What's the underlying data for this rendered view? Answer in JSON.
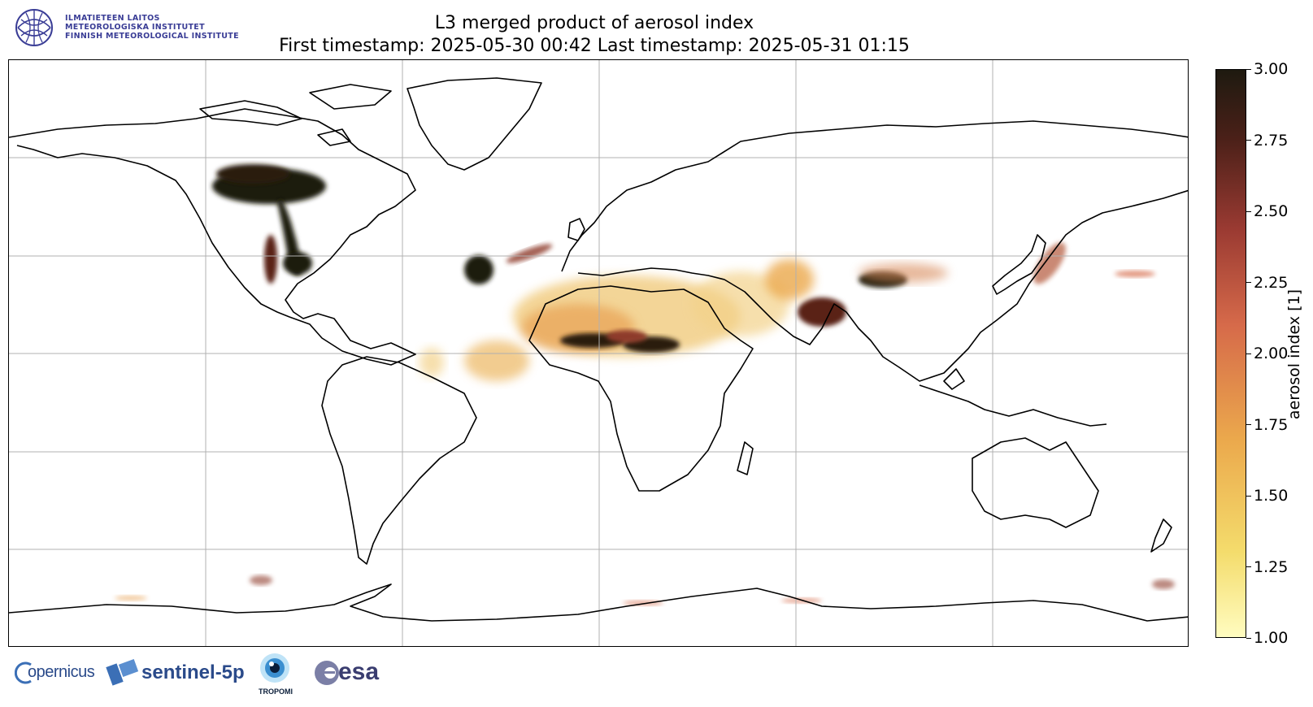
{
  "title": {
    "line1": "L3 merged product of aerosol index",
    "line2": "First timestamp: 2025-05-30 00:42   Last timestamp: 2025-05-31 01:15"
  },
  "institute": {
    "line1": "ILMATIETEEN LAITOS",
    "line2": "METEOROLOGISKA INSTITUTET",
    "line3": "FINNISH METEOROLOGICAL INSTITUTE"
  },
  "colorbar": {
    "label": "aerosol index [1]",
    "min": 1.0,
    "max": 3.0,
    "ticks": [
      "1.00",
      "1.25",
      "1.50",
      "1.75",
      "2.00",
      "2.25",
      "2.50",
      "2.75",
      "3.00"
    ],
    "colors": [
      "#fffcc0",
      "#f4dc6c",
      "#eba84c",
      "#d66a4a",
      "#9a3a32",
      "#4a2018",
      "#1e1a10"
    ]
  },
  "logos": {
    "copernicus": "opernicus",
    "sentinel": "sentinel-5p",
    "tropomi": "TROPOMI",
    "esa": "esa"
  },
  "map": {
    "projection": "equirectangular",
    "lon_range": [
      -180,
      180
    ],
    "lat_range": [
      -90,
      90
    ],
    "gridlines": true,
    "grid_lon": [
      -120,
      -60,
      0,
      60,
      120
    ],
    "grid_lat": [
      -60,
      -30,
      0,
      30,
      60
    ]
  }
}
